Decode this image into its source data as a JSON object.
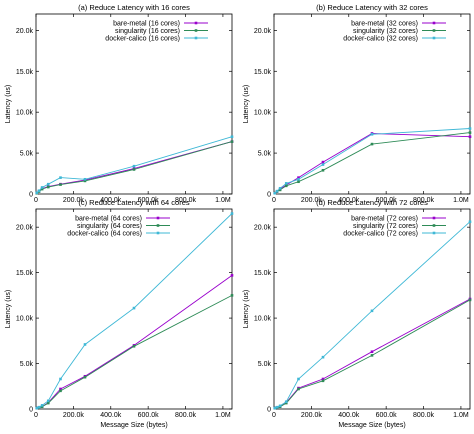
{
  "chart_data": [
    {
      "type": "line",
      "title": "(a) Reduce Latency with 16 cores",
      "xlabel": "",
      "ylabel": "Latency (us)",
      "xlim": [
        0,
        1048576
      ],
      "ylim": [
        0,
        22000
      ],
      "x_ticks": [
        0,
        200000,
        400000,
        600000,
        800000,
        1000000
      ],
      "x_tick_labels": [
        "0",
        "200.0k",
        "400.0k",
        "600.0k",
        "800.0k",
        "1.0M"
      ],
      "y_ticks": [
        0,
        5000,
        10000,
        15000,
        20000
      ],
      "y_tick_labels": [
        "0",
        "5.0k",
        "10.0k",
        "15.0k",
        "20.0k"
      ],
      "legend_position": "top-right",
      "series": [
        {
          "name": "bare-metal (16 cores)",
          "color": "#9900cc",
          "x": [
            4096,
            16384,
            32768,
            65536,
            131072,
            262144,
            524288,
            1048576
          ],
          "y": [
            100,
            350,
            650,
            900,
            1200,
            1700,
            3100,
            6400
          ]
        },
        {
          "name": "singularity (16 cores)",
          "color": "#2e8b57",
          "x": [
            4096,
            16384,
            32768,
            65536,
            131072,
            262144,
            524288,
            1048576
          ],
          "y": [
            100,
            300,
            600,
            850,
            1150,
            1600,
            3000,
            6400
          ]
        },
        {
          "name": "docker-calico (16 cores)",
          "color": "#3fb8d6",
          "x": [
            4096,
            16384,
            32768,
            65536,
            131072,
            262144,
            524288,
            1048576
          ],
          "y": [
            150,
            400,
            800,
            1200,
            2000,
            1800,
            3400,
            7000
          ]
        }
      ]
    },
    {
      "type": "line",
      "title": "(b) Reduce Latency with 32 cores",
      "xlabel": "",
      "ylabel": "Latency (us)",
      "xlim": [
        0,
        1048576
      ],
      "ylim": [
        0,
        22000
      ],
      "x_ticks": [
        0,
        200000,
        400000,
        600000,
        800000,
        1000000
      ],
      "x_tick_labels": [
        "0",
        "200.0k",
        "400.0k",
        "600.0k",
        "800.0k",
        "1.0M"
      ],
      "y_ticks": [
        0,
        5000,
        10000,
        15000,
        20000
      ],
      "y_tick_labels": [
        "0",
        "5.0k",
        "10.0k",
        "15.0k",
        "20.0k"
      ],
      "legend_position": "top-right",
      "series": [
        {
          "name": "bare-metal (32 cores)",
          "color": "#9900cc",
          "x": [
            4096,
            16384,
            32768,
            65536,
            131072,
            262144,
            524288,
            1048576
          ],
          "y": [
            100,
            300,
            600,
            1100,
            2000,
            3900,
            7400,
            7000
          ]
        },
        {
          "name": "singularity (32 cores)",
          "color": "#2e8b57",
          "x": [
            4096,
            16384,
            32768,
            65536,
            131072,
            262144,
            524288,
            1048576
          ],
          "y": [
            100,
            300,
            500,
            1000,
            1500,
            2900,
            6100,
            7500
          ]
        },
        {
          "name": "docker-calico (32 cores)",
          "color": "#3fb8d6",
          "x": [
            4096,
            16384,
            32768,
            65536,
            131072,
            262144,
            524288,
            1048576
          ],
          "y": [
            100,
            350,
            700,
            1300,
            1800,
            3600,
            7300,
            8000
          ]
        }
      ]
    },
    {
      "type": "line",
      "title": "(c) Reduce Latency with 64 cores",
      "xlabel": "Message Size (bytes)",
      "ylabel": "Latency (us)",
      "xlim": [
        0,
        1048576
      ],
      "ylim": [
        0,
        22000
      ],
      "x_ticks": [
        0,
        200000,
        400000,
        600000,
        800000,
        1000000
      ],
      "x_tick_labels": [
        "0",
        "200.0k",
        "400.0k",
        "600.0k",
        "800.0k",
        "1.0M"
      ],
      "y_ticks": [
        0,
        5000,
        10000,
        15000,
        20000
      ],
      "y_tick_labels": [
        "0",
        "5.0k",
        "10.0k",
        "15.0k",
        "20.0k"
      ],
      "legend_position": "top-left",
      "series": [
        {
          "name": "bare-metal (64 cores)",
          "color": "#9900cc",
          "x": [
            4096,
            16384,
            32768,
            65536,
            131072,
            262144,
            524288,
            1048576
          ],
          "y": [
            100,
            150,
            250,
            700,
            2200,
            3600,
            7000,
            14700
          ]
        },
        {
          "name": "singularity (64 cores)",
          "color": "#2e8b57",
          "x": [
            4096,
            16384,
            32768,
            65536,
            131072,
            262144,
            524288,
            1048576
          ],
          "y": [
            100,
            150,
            250,
            650,
            2000,
            3500,
            6900,
            12500
          ]
        },
        {
          "name": "docker-calico (64 cores)",
          "color": "#3fb8d6",
          "x": [
            4096,
            16384,
            32768,
            65536,
            131072,
            262144,
            524288,
            1048576
          ],
          "y": [
            100,
            200,
            400,
            900,
            3300,
            7100,
            11100,
            21500
          ]
        }
      ]
    },
    {
      "type": "line",
      "title": "(d) Reduce Latency with 72 cores",
      "xlabel": "Message Size (bytes)",
      "ylabel": "Latency (us)",
      "xlim": [
        0,
        1048576
      ],
      "ylim": [
        0,
        22000
      ],
      "x_ticks": [
        0,
        200000,
        400000,
        600000,
        800000,
        1000000
      ],
      "x_tick_labels": [
        "0",
        "200.0k",
        "400.0k",
        "600.0k",
        "800.0k",
        "1.0M"
      ],
      "y_ticks": [
        0,
        5000,
        10000,
        15000,
        20000
      ],
      "y_tick_labels": [
        "0",
        "5.0k",
        "10.0k",
        "15.0k",
        "20.0k"
      ],
      "legend_position": "top-right",
      "series": [
        {
          "name": "bare-metal (72 cores)",
          "color": "#9900cc",
          "x": [
            4096,
            16384,
            32768,
            65536,
            131072,
            262144,
            524288,
            1048576
          ],
          "y": [
            100,
            150,
            250,
            700,
            2300,
            3300,
            6300,
            12100
          ]
        },
        {
          "name": "singularity (72 cores)",
          "color": "#2e8b57",
          "x": [
            4096,
            16384,
            32768,
            65536,
            131072,
            262144,
            524288,
            1048576
          ],
          "y": [
            100,
            150,
            250,
            650,
            2200,
            3100,
            5900,
            12000
          ]
        },
        {
          "name": "docker-calico (72 cores)",
          "color": "#3fb8d6",
          "x": [
            4096,
            16384,
            32768,
            65536,
            131072,
            262144,
            524288,
            1048576
          ],
          "y": [
            100,
            200,
            350,
            800,
            3300,
            5700,
            10800,
            20600
          ]
        }
      ]
    }
  ]
}
